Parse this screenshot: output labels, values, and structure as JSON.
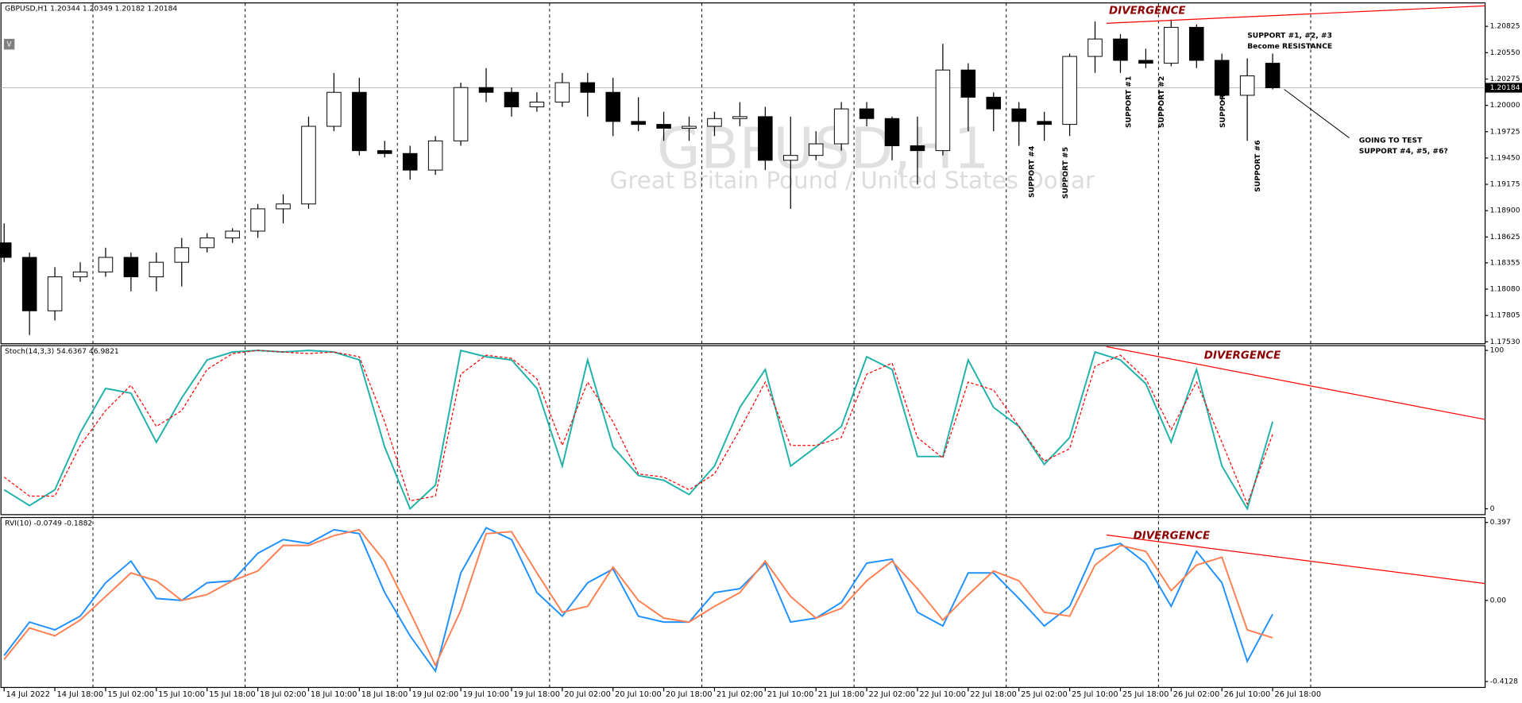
{
  "chart_data": [
    {
      "type": "candlestick",
      "title": "GBPUSD,H1 1.20344 1.20349 1.20182 1.20184",
      "watermark": [
        "GBPUSD,H1",
        "Great Britain Pound / United States Dollar"
      ],
      "x": [
        0,
        4,
        8,
        12,
        16,
        20,
        24,
        28,
        32,
        36,
        40,
        44,
        48,
        52,
        56,
        60,
        64,
        68,
        72,
        76,
        80,
        84,
        88,
        92,
        96,
        100,
        104,
        108,
        112,
        116,
        120,
        124,
        128,
        132,
        136,
        140,
        144,
        148,
        152,
        156,
        160,
        164,
        168,
        172,
        176,
        180,
        184,
        188,
        192,
        196,
        200
      ],
      "open": [
        1.18564,
        1.18412,
        1.17854,
        1.18209,
        1.1826,
        1.18412,
        1.18209,
        1.18361,
        1.18513,
        1.18615,
        1.18686,
        1.18919,
        1.1897,
        1.19781,
        1.20136,
        1.19527,
        1.19497,
        1.19324,
        1.19629,
        1.20186,
        1.20136,
        1.19984,
        1.20034,
        1.20237,
        1.20136,
        1.19832,
        1.19801,
        1.19761,
        1.19781,
        1.19862,
        1.19882,
        1.19426,
        1.19477,
        1.19598,
        1.19963,
        1.19862,
        1.19578,
        1.19527,
        1.20369,
        1.20085,
        1.19963,
        1.19832,
        1.19801,
        1.20511,
        1.20693,
        1.2047,
        1.2044,
        1.20815,
        1.2047,
        1.20105,
        1.2044
      ],
      "high": [
        1.18767,
        1.18463,
        1.1831,
        1.18361,
        1.18513,
        1.18463,
        1.18463,
        1.18615,
        1.18665,
        1.18716,
        1.1897,
        1.19071,
        1.19882,
        1.20339,
        1.20288,
        1.19629,
        1.19578,
        1.19679,
        1.20237,
        1.20389,
        1.20186,
        1.20136,
        1.20339,
        1.20339,
        1.20288,
        1.20085,
        1.19933,
        1.19882,
        1.19933,
        1.20034,
        1.19984,
        1.19882,
        1.1973,
        1.20034,
        1.20034,
        1.19882,
        1.19882,
        1.20643,
        1.2044,
        1.20136,
        1.20034,
        1.19933,
        1.20541,
        1.20876,
        1.20744,
        1.20592,
        1.20896,
        1.20845,
        1.20541,
        1.20491,
        1.20541
      ],
      "low": [
        1.18361,
        1.17601,
        1.17753,
        1.18158,
        1.18209,
        1.18057,
        1.18057,
        1.18108,
        1.18463,
        1.18564,
        1.18615,
        1.18767,
        1.18919,
        1.1973,
        1.19477,
        1.19456,
        1.19223,
        1.19274,
        1.19578,
        1.20034,
        1.19882,
        1.19933,
        1.19984,
        1.19882,
        1.19679,
        1.1973,
        1.19629,
        1.19629,
        1.19679,
        1.19781,
        1.19324,
        1.18919,
        1.19426,
        1.19527,
        1.19781,
        1.19426,
        1.19172,
        1.19477,
        1.1973,
        1.1973,
        1.19578,
        1.19629,
        1.19679,
        1.20339,
        1.20339,
        1.20389,
        1.20409,
        1.20389,
        1.20034,
        1.19629,
        1.20166
      ],
      "close": [
        1.18412,
        1.17854,
        1.18209,
        1.1826,
        1.18412,
        1.18209,
        1.18361,
        1.18513,
        1.18615,
        1.18686,
        1.18919,
        1.1897,
        1.19781,
        1.20136,
        1.19527,
        1.19497,
        1.19324,
        1.19629,
        1.20186,
        1.20136,
        1.19984,
        1.20034,
        1.20237,
        1.20136,
        1.19832,
        1.19801,
        1.19761,
        1.19781,
        1.19862,
        1.19882,
        1.19426,
        1.19477,
        1.19598,
        1.19963,
        1.19862,
        1.19578,
        1.19527,
        1.20369,
        1.20085,
        1.19963,
        1.19832,
        1.19801,
        1.20511,
        1.20693,
        1.2047,
        1.2044,
        1.20815,
        1.2047,
        1.20105,
        1.20308,
        1.20184
      ],
      "up_color": "#ffffff",
      "down_color": "#000000",
      "last_price": 1.20184,
      "xlim": [
        -0.5,
        233.5
      ],
      "ylim": [
        1.1751,
        1.2107
      ],
      "yticks": [
        1.20825,
        {
          "value": 1.2055,
          "label": "1.20550"
        },
        1.20275,
        {
          "value": 1.2,
          "label": "1.20000"
        },
        1.19725,
        {
          "value": 1.1945,
          "label": "1.19450"
        },
        1.19175,
        {
          "value": 1.189,
          "label": "1.18900"
        },
        1.18625,
        1.18355,
        {
          "value": 1.1808,
          "label": "1.18080"
        },
        1.17805,
        {
          "value": 1.1753,
          "label": "1.17530"
        }
      ],
      "annotations": [
        "DIVERGENCE",
        "SUPPORT #1, #2, #3",
        "Become RESISTANCE",
        "GOING TO TEST",
        "SUPPORT #4, #5, #6?",
        "SUPPORT #1",
        "SUPPORT #2",
        "SUPPORT #3",
        "SUPPORT #4",
        "SUPPORT #5",
        "SUPPORT #6"
      ]
    },
    {
      "type": "line",
      "title": "Stoch(14,3,3) 54.6367 46.9821",
      "x": [
        0,
        4,
        8,
        12,
        16,
        20,
        24,
        28,
        32,
        36,
        40,
        44,
        48,
        52,
        56,
        60,
        64,
        68,
        72,
        76,
        80,
        84,
        88,
        92,
        96,
        100,
        104,
        108,
        112,
        116,
        120,
        124,
        128,
        132,
        136,
        140,
        144,
        148,
        152,
        156,
        160,
        164,
        168,
        172,
        176,
        180,
        184,
        188,
        192,
        196,
        200
      ],
      "series": [
        {
          "color": "#20b2aa",
          "dashed": false,
          "values": [
            12,
            2,
            12,
            48,
            76,
            73,
            42,
            70,
            94,
            99,
            100,
            99,
            100,
            99,
            94,
            39,
            0,
            15,
            100,
            96,
            94,
            76,
            27,
            94,
            39,
            21,
            18,
            9,
            27,
            64,
            88,
            27,
            39,
            52,
            96,
            88,
            33,
            33,
            94,
            64,
            52,
            28,
            45,
            99,
            94,
            79,
            42,
            88,
            27,
            0,
            55
          ]
        },
        {
          "color": "#ff0000",
          "dashed": true,
          "values": [
            20,
            8,
            8,
            40,
            62,
            78,
            52,
            62,
            88,
            98,
            100,
            99,
            98,
            99,
            96,
            55,
            5,
            8,
            85,
            97,
            95,
            82,
            40,
            80,
            55,
            22,
            20,
            12,
            22,
            50,
            80,
            40,
            40,
            45,
            85,
            92,
            45,
            32,
            80,
            75,
            52,
            30,
            38,
            90,
            97,
            82,
            50,
            80,
            42,
            3,
            47
          ]
        }
      ],
      "xlim": [
        -0.5,
        233.5
      ],
      "ylim": [
        -3.7,
        103
      ],
      "yticks": [
        0,
        100
      ],
      "annotations": [
        "DIVERGENCE"
      ]
    },
    {
      "type": "line",
      "title": "RVI(10) -0.0749 -0.1882",
      "x": [
        0,
        4,
        8,
        12,
        16,
        20,
        24,
        28,
        32,
        36,
        40,
        44,
        48,
        52,
        56,
        60,
        64,
        68,
        72,
        76,
        80,
        84,
        88,
        92,
        96,
        100,
        104,
        108,
        112,
        116,
        120,
        124,
        128,
        132,
        136,
        140,
        144,
        148,
        152,
        156,
        160,
        164,
        168,
        172,
        176,
        180,
        184,
        188,
        192,
        196,
        200
      ],
      "series": [
        {
          "color": "#1e90ff",
          "dashed": false,
          "values": [
            -0.28,
            -0.11,
            -0.15,
            -0.08,
            0.09,
            0.2,
            0.01,
            0,
            0.09,
            0.1,
            0.24,
            0.31,
            0.29,
            0.36,
            0.34,
            0.04,
            -0.18,
            -0.36,
            0.14,
            0.37,
            0.31,
            0.04,
            -0.08,
            0.09,
            0.16,
            -0.08,
            -0.11,
            -0.11,
            0.04,
            0.06,
            0.19,
            -0.11,
            -0.09,
            -0.01,
            0.19,
            0.21,
            -0.06,
            -0.13,
            0.14,
            0.14,
            0.01,
            -0.13,
            -0.03,
            0.26,
            0.29,
            0.19,
            -0.03,
            0.25,
            0.09,
            -0.31,
            -0.07
          ]
        },
        {
          "color": "#ff7f50",
          "dashed": false,
          "values": [
            -0.3,
            -0.14,
            -0.18,
            -0.1,
            0.02,
            0.14,
            0.1,
            0,
            0.03,
            0.1,
            0.15,
            0.28,
            0.28,
            0.33,
            0.36,
            0.2,
            -0.06,
            -0.33,
            -0.05,
            0.34,
            0.35,
            0.14,
            -0.06,
            -0.03,
            0.17,
            0,
            -0.09,
            -0.11,
            -0.03,
            0.04,
            0.2,
            0.02,
            -0.09,
            -0.04,
            0.1,
            0.2,
            0.06,
            -0.1,
            0.03,
            0.15,
            0.1,
            -0.06,
            -0.08,
            0.18,
            0.28,
            0.25,
            0.05,
            0.18,
            0.22,
            -0.15,
            -0.19
          ]
        }
      ],
      "xlim": [
        -0.5,
        233.5
      ],
      "ylim": [
        -0.443,
        0.422
      ],
      "yticks": [
        0.397,
        {
          "value": 0,
          "label": "0.00"
        },
        -0.4128
      ],
      "xticks": [
        {
          "value": 0,
          "label": "14 Jul 2022"
        },
        {
          "value": 8,
          "label": "14 Jul 18:00"
        },
        {
          "value": 16,
          "label": "15 Jul 02:00"
        },
        {
          "value": 24,
          "label": "15 Jul 10:00"
        },
        {
          "value": 32,
          "label": "15 Jul 18:00"
        },
        {
          "value": 40,
          "label": "18 Jul 02:00"
        },
        {
          "value": 48,
          "label": "18 Jul 10:00"
        },
        {
          "value": 56,
          "label": "18 Jul 18:00"
        },
        {
          "value": 64,
          "label": "19 Jul 02:00"
        },
        {
          "value": 72,
          "label": "19 Jul 10:00"
        },
        {
          "value": 80,
          "label": "19 Jul 18:00"
        },
        {
          "value": 88,
          "label": "20 Jul 02:00"
        },
        {
          "value": 96,
          "label": "20 Jul 10:00"
        },
        {
          "value": 104,
          "label": "20 Jul 18:00"
        },
        {
          "value": 112,
          "label": "21 Jul 02:00"
        },
        {
          "value": 120,
          "label": "21 Jul 10:00"
        },
        {
          "value": 128,
          "label": "21 Jul 18:00"
        },
        {
          "value": 136,
          "label": "22 Jul 02:00"
        },
        {
          "value": 144,
          "label": "22 Jul 10:00"
        },
        {
          "value": 152,
          "label": "22 Jul 18:00"
        },
        {
          "value": 160,
          "label": "25 Jul 02:00"
        },
        {
          "value": 168,
          "label": "25 Jul 10:00"
        },
        {
          "value": 176,
          "label": "25 Jul 18:00"
        },
        {
          "value": 184,
          "label": "26 Jul 02:00"
        },
        {
          "value": 192,
          "label": "26 Jul 10:00"
        },
        {
          "value": 200,
          "label": "26 Jul 18:00"
        }
      ],
      "separators": [
        14,
        38,
        62,
        86,
        110,
        134,
        158,
        182,
        206
      ],
      "annotations": [
        "DIVERGENCE"
      ]
    }
  ]
}
